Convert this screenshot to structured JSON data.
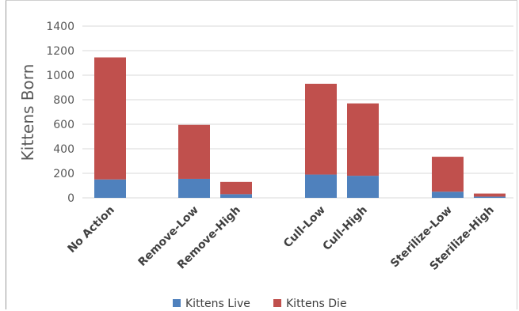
{
  "chart_data": {
    "type": "bar",
    "stacked": true,
    "categories": [
      "No Action",
      "Remove-Low",
      "Remove-High",
      "Cull-Low",
      "Cull-High",
      "Sterilize-Low",
      "Sterilize-High"
    ],
    "series": [
      {
        "name": "Kittens Live",
        "color": "#4f81bd",
        "values": [
          150,
          155,
          30,
          190,
          180,
          50,
          10
        ]
      },
      {
        "name": "Kittens Die",
        "color": "#c0504d",
        "values": [
          995,
          440,
          100,
          740,
          590,
          285,
          25
        ]
      }
    ],
    "xlabel": "",
    "ylabel": "Kittens Born",
    "ylim": [
      0,
      1400
    ],
    "yticks": [
      0,
      200,
      400,
      600,
      800,
      1000,
      1200,
      1400
    ],
    "grid": true,
    "legend": "bottom"
  }
}
